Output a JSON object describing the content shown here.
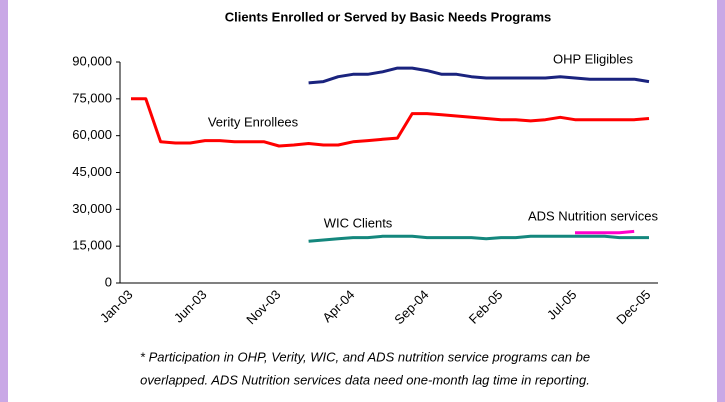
{
  "chart_data": {
    "type": "line",
    "title": "Clients Enrolled or Served by Basic Needs Programs",
    "categories": [
      "Jan-03",
      null,
      null,
      null,
      null,
      "Jun-03",
      null,
      null,
      null,
      null,
      "Nov-03",
      null,
      null,
      null,
      null,
      "Apr-04",
      null,
      null,
      null,
      null,
      "Sep-04",
      null,
      null,
      null,
      null,
      "Feb-05",
      null,
      null,
      null,
      null,
      "Jul-05",
      null,
      null,
      null,
      null,
      "Dec-05"
    ],
    "series": [
      {
        "name": "OHP Eligibles",
        "color": "#1a237e",
        "values": [
          null,
          null,
          null,
          null,
          null,
          null,
          null,
          null,
          null,
          null,
          null,
          null,
          81500,
          82000,
          84000,
          85000,
          85000,
          86000,
          87500,
          87500,
          86500,
          85000,
          85000,
          84000,
          83500,
          83500,
          83500,
          83500,
          83500,
          84000,
          83500,
          83000,
          83000,
          83000,
          83000,
          82000
        ]
      },
      {
        "name": "Verity Enrollees",
        "color": "#ff0000",
        "values": [
          75000,
          75000,
          57500,
          57000,
          57000,
          58000,
          58000,
          57500,
          57500,
          57500,
          55800,
          56200,
          56800,
          56200,
          56200,
          57500,
          58000,
          58500,
          59000,
          69000,
          69000,
          68500,
          68000,
          67500,
          67000,
          66500,
          66500,
          66000,
          66500,
          67500,
          66500,
          66500,
          66500,
          66500,
          66500,
          67000
        ]
      },
      {
        "name": "WIC Clients",
        "color": "#14877d",
        "values": [
          null,
          null,
          null,
          null,
          null,
          null,
          null,
          null,
          null,
          null,
          null,
          null,
          17000,
          17500,
          18000,
          18500,
          18500,
          19000,
          19000,
          19000,
          18500,
          18500,
          18500,
          18500,
          18000,
          18500,
          18500,
          19000,
          19000,
          19000,
          19000,
          19000,
          19000,
          18500,
          18500,
          18500
        ]
      },
      {
        "name": "ADS Nutrition services",
        "color": "#ff00cc",
        "values": [
          null,
          null,
          null,
          null,
          null,
          null,
          null,
          null,
          null,
          null,
          null,
          null,
          null,
          null,
          null,
          null,
          null,
          null,
          null,
          null,
          null,
          null,
          null,
          null,
          null,
          null,
          null,
          null,
          null,
          null,
          20500,
          20500,
          20500,
          20500,
          21000,
          null
        ]
      }
    ],
    "ylim": [
      0,
      90000
    ],
    "yticks": [
      0,
      {
        "value": 15000,
        "label": "15,000"
      },
      {
        "value": 30000,
        "label": "30,000"
      },
      {
        "value": 45000,
        "label": "45,000"
      },
      {
        "value": 60000,
        "label": "60,000"
      },
      {
        "value": 75000,
        "label": "75,000"
      },
      {
        "value": 90000,
        "label": "90,000"
      }
    ],
    "grid": false,
    "notes": [
      "* Participation in OHP, Verity, WIC, and ADS nutrition service programs can be",
      "overlapped. ADS Nutrition services data need one-month lag time in reporting."
    ]
  }
}
